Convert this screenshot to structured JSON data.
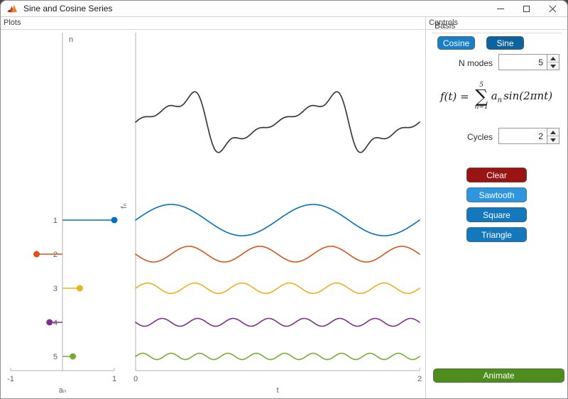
{
  "window": {
    "title": "Sine and Cosine Series"
  },
  "plots_panel": {
    "header": "Plots"
  },
  "controls_panel": {
    "header": "Controls",
    "basis_label": "Basis",
    "basis_buttons": [
      {
        "label": "Cosine"
      },
      {
        "label": "Sine"
      }
    ],
    "n_modes": {
      "label": "N modes",
      "value": "5"
    },
    "formula": {
      "lhs": "f(t)",
      "equals": "=",
      "sum_upper": "5",
      "sum_symbol": "∑",
      "sum_lower": "n=1",
      "term_coef": "a",
      "term_coef_sub": "n",
      "term_trig": "sin(2πnt)"
    },
    "cycles": {
      "label": "Cycles",
      "value": "2"
    },
    "action_buttons": [
      {
        "label": "Clear"
      },
      {
        "label": "Sawtooth"
      },
      {
        "label": "Square"
      },
      {
        "label": "Triangle"
      }
    ],
    "animate_label": "Animate"
  },
  "colors": {
    "cosine_btn": "#1a7fc4",
    "sine_btn": "#0e639e",
    "clear_btn": "#9a1414",
    "sawtooth_btn": "#2e96dd",
    "square_btn": "#1478bd",
    "triangle_btn": "#1478bd",
    "animate_btn": "#4e8d1d",
    "series": [
      "#0072BD",
      "#D95319",
      "#EDB120",
      "#7E2F8E",
      "#77AC30"
    ],
    "sum_line": "#3a3a3a",
    "axis": "#b0b0b0",
    "tick_label": "#5f5f5f"
  },
  "chart_data": [
    {
      "type": "stem",
      "orientation": "horizontal",
      "xlabel": "aₙ",
      "ylabel": "n",
      "xlim": [
        -1,
        1
      ],
      "x_ticks": [
        "-1",
        "1"
      ],
      "n": [
        1,
        2,
        3,
        4,
        5
      ],
      "values": [
        1,
        -0.5,
        0.3333,
        -0.25,
        0.2
      ]
    },
    {
      "type": "line",
      "xlabel": "t",
      "ylabel": "fₙ",
      "xlim": [
        0,
        2
      ],
      "x_ticks": [
        "0",
        "2"
      ],
      "cycles": 2,
      "frequencies": [
        1,
        2,
        3,
        4,
        5
      ],
      "coefficients": [
        1,
        -0.5,
        0.3333,
        -0.25,
        0.2
      ],
      "includes_sum_trace": true,
      "layout": "sum on top, components 1-5 stacked below, vertically aligned with stem rows"
    }
  ]
}
